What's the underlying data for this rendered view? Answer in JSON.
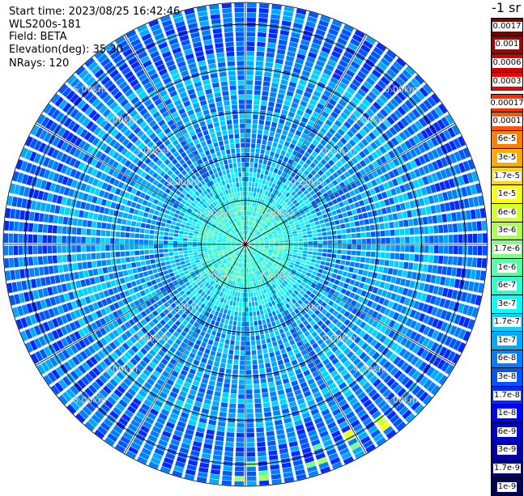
{
  "info": {
    "start_time": "Start time: 2023/08/25 16:42:46",
    "instrument": "WLS200s-181",
    "field": "Field: BETA",
    "elevation": "Elevation(deg): 35.30",
    "nrays": "NRays: 120"
  },
  "unit_label": "-1 sr",
  "colorbar": {
    "top_group": [
      {
        "label": "0.0017",
        "color": "#7a0000"
      },
      {
        "label": "0.001",
        "color": "#a50000"
      },
      {
        "label": "0.0006",
        "color": "#d20000"
      },
      {
        "label": "0.0003",
        "color": "#f00000"
      }
    ],
    "main_group": [
      {
        "label": "0.00017",
        "color": "#ff2a00"
      },
      {
        "label": "0.0001",
        "color": "#ff5500"
      },
      {
        "label": "6e-5",
        "color": "#ff8000"
      },
      {
        "label": "3e-5",
        "color": "#ffaa00"
      },
      {
        "label": "1.7e-5",
        "color": "#ffd500"
      },
      {
        "label": "1e-5",
        "color": "#ffff00"
      },
      {
        "label": "6e-6",
        "color": "#d4ff2a"
      },
      {
        "label": "3e-6",
        "color": "#aaff55"
      },
      {
        "label": "1.7e-6",
        "color": "#80ff80"
      },
      {
        "label": "1e-6",
        "color": "#55ffaa"
      },
      {
        "label": "6e-7",
        "color": "#2affd4"
      },
      {
        "label": "3e-7",
        "color": "#00ffff"
      },
      {
        "label": "1.7e-7",
        "color": "#00d4ff"
      },
      {
        "label": "1e-7",
        "color": "#00aaff"
      },
      {
        "label": "6e-8",
        "color": "#0080ff"
      },
      {
        "label": "3e-8",
        "color": "#0055ff"
      },
      {
        "label": "1.7e-8",
        "color": "#002aff"
      },
      {
        "label": "1e-8",
        "color": "#0000ff"
      },
      {
        "label": "6e-9",
        "color": "#0000d4"
      },
      {
        "label": "3e-9",
        "color": "#0000aa"
      },
      {
        "label": "1.7e-9",
        "color": "#000080"
      },
      {
        "label": "1e-9",
        "color": "#000055"
      }
    ]
  },
  "chart_data": {
    "type": "heatmap",
    "projection": "polar PPI",
    "field": "BETA",
    "unit": "-1 sr",
    "elevation_deg": 35.3,
    "nrays": 120,
    "max_range_km": 5.5,
    "range_rings_km": [
      1,
      2,
      3,
      4,
      5
    ],
    "ring_labels": [
      "1.00km",
      "2.00km",
      "3.00km",
      "4.00km",
      "5.00km"
    ],
    "spoke_azimuths_deg": [
      0,
      30,
      60,
      90,
      120,
      150,
      180,
      210,
      240,
      270,
      300,
      330
    ],
    "color_scale": "log",
    "value_range": [
      1e-09,
      0.0017
    ],
    "typical_value_near_range_1km": 3e-07,
    "typical_value_far_range_5km": 6e-08,
    "strong_echo_sector": {
      "azimuth_deg": [
        135,
        185
      ],
      "range_km": [
        4.8,
        5.4
      ],
      "value": 3e-06
    }
  }
}
